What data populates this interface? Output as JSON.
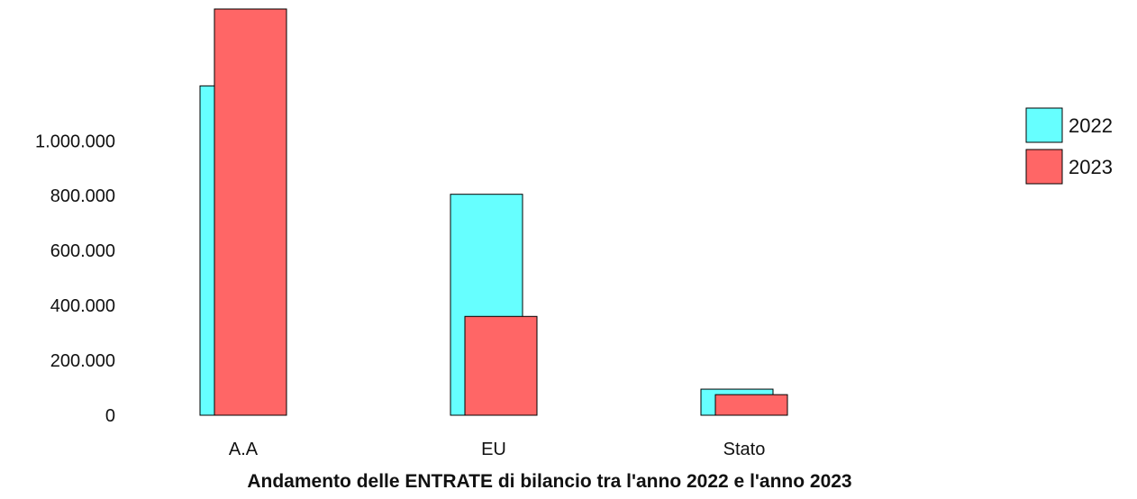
{
  "chart_data": {
    "type": "bar",
    "title": "Andamento delle ENTRATE di bilancio tra l'anno 2022 e l'anno 2023",
    "xlabel": "",
    "ylabel": "",
    "categories": [
      "A.A",
      "EU",
      "Stato"
    ],
    "series": [
      {
        "name": "2022",
        "color": "#66ffff",
        "values": [
          1200000,
          805000,
          95000
        ]
      },
      {
        "name": "2023",
        "color": "#ff6666",
        "values": [
          1480000,
          360000,
          75000
        ]
      }
    ],
    "ylim": [
      0,
      1480000
    ],
    "yticks": [
      0,
      200000,
      400000,
      600000,
      800000,
      1000000
    ],
    "ytick_labels": [
      "0",
      "200.000",
      "400.000",
      "600.000",
      "800.000",
      "1.000.000"
    ],
    "grid": false,
    "legend_position": "right"
  }
}
